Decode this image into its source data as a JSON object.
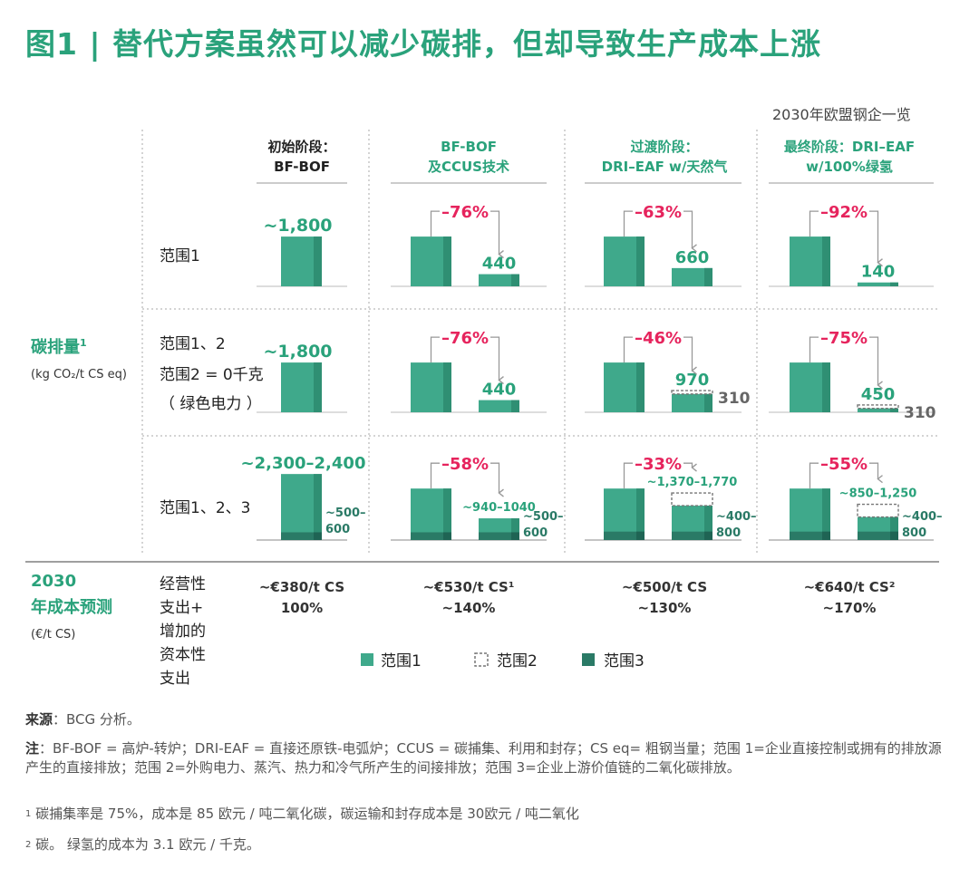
{
  "title": "图1 | 替代方案虽然可以减少碳排，但却导致生产成本上涨",
  "subtitle": "2030年欧盟钢企一览",
  "colors": {
    "scope1": "#3fa98b",
    "scope1_edge": "#2f8f73",
    "scope3": "#2a7a66",
    "scope3_edge": "#1f6454",
    "title": "#2aa27b",
    "accent": "#2aa27b",
    "decrease": "#e6245d",
    "gray": "#666666",
    "rule": "#bdbdbd"
  },
  "left_labels": {
    "emissions_title": "碳排量",
    "emissions_sup": "1",
    "emissions_unit": "(kg CO₂/t CS eq)",
    "cost_title_line1": "2030",
    "cost_title_line2": "年成本预测",
    "cost_unit": "(€/t CS)"
  },
  "row_labels": {
    "row1": "范围1",
    "row2": [
      "范围1、2",
      "范围2 = 0千克",
      "（ 绿色电力 ）"
    ],
    "row3": "范围1、2、3",
    "cost": [
      "经营性",
      "支出+",
      "增加的",
      "资本性",
      "支出"
    ]
  },
  "chart_data": {
    "type": "bar",
    "title": "图1 | 替代方案虽然可以减少碳排，但却导致生产成本上涨",
    "categories": [
      [
        "初始阶段：",
        "BF-BOF"
      ],
      [
        "BF-BOF",
        "及CCUS技术"
      ],
      [
        "过渡阶段：",
        "DRI–EAF w/天然气"
      ],
      [
        "最终阶段：DRI–EAF",
        "w/100%绿氢"
      ]
    ],
    "rows": [
      {
        "name": "范围1",
        "values": [
          1800,
          440,
          660,
          140
        ],
        "value_labels": [
          "~1,800",
          "440",
          "660",
          "140"
        ],
        "reductions": [
          "",
          "–76%",
          "–63%",
          "–92%"
        ]
      },
      {
        "name": "范围1、2",
        "values": [
          1800,
          440,
          660,
          140
        ],
        "value_labels": [
          "~1,800",
          "440",
          "970",
          "450"
        ],
        "scope2": [
          0,
          0,
          310,
          310
        ],
        "scope2_labels": [
          "",
          "",
          "310",
          "310"
        ],
        "reductions": [
          "",
          "–76%",
          "–46%",
          "–75%"
        ]
      },
      {
        "name": "范围1、2、3",
        "totals": [
          2350,
          990,
          1570,
          1050
        ],
        "total_labels": [
          "~2,300–2,400",
          "~940–1040",
          "~1,370–1,770",
          "~850–1,250"
        ],
        "scope3": [
          550,
          550,
          600,
          600
        ],
        "scope3_labels": [
          "~500–\n600",
          "~500–\n600",
          "~400–\n800",
          "~400–\n800"
        ],
        "scope2_outline": [
          false,
          false,
          true,
          true
        ],
        "reductions": [
          "",
          "–58%",
          "–33%",
          "–55%"
        ]
      }
    ],
    "costs": {
      "values": [
        380,
        530,
        500,
        640
      ],
      "labels": [
        "~€380/t CS",
        "~€530/t CS¹",
        "~€500/t CS",
        "~€640/t CS²"
      ],
      "relative": [
        "100%",
        "~140%",
        "~130%",
        "~170%"
      ]
    },
    "unit": "kg CO₂/t CS eq",
    "ylim": [
      0,
      2500
    ]
  },
  "legend": {
    "scope1": "范围1",
    "scope2": "范围2",
    "scope3": "范围3"
  },
  "notes": {
    "source_label": "来源",
    "source_text": "：BCG 分析。",
    "note_label": "注",
    "note_text": "：BF-BOF = 高炉-转炉；DRI-EAF = 直接还原铁-电弧炉；CCUS = 碳捕集、利用和封存；CS eq= 粗钢当量；范围 1=企业直接控制或拥有的排放源产生的直接排放；范围 2=外购电力、蒸汽、热力和冷气所产生的间接排放；范围 3=企业上游价值链的二氧化碳排放。",
    "fn1_sup": "1",
    "fn1": "碳捕集率是 75%，成本是 85 欧元 / 吨二氧化碳，碳运输和封存成本是 30欧元 / 吨二氧化",
    "fn2_sup": "2",
    "fn2": "碳。 绿氢的成本为 3.1 欧元 / 千克。"
  }
}
